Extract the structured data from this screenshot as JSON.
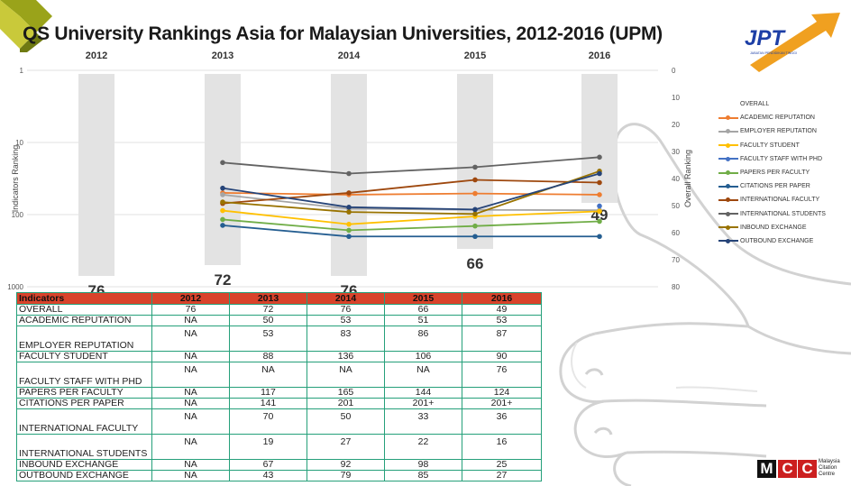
{
  "title": "QS University Rankings Asia for Malaysian Universities, 2012-2016 (UPM)",
  "logos": {
    "jpt": "JPT",
    "jpt_tagline": "JABATAN PENDIDIKAN TINGGI",
    "mcc_letters": [
      "M",
      "C",
      "C"
    ],
    "mcc_text": [
      "Malaysia",
      "Citation",
      "Centre"
    ]
  },
  "colors": {
    "header_bg": "#d9432b",
    "table_border": "#25a07a",
    "overall_bar": "#e3e3e3",
    "corner_logo": "#9aa31a",
    "jpt_arrow": "#f0a020",
    "jpt_blue": "#1d3fa6",
    "mcc_red": "#cc1f1f"
  },
  "chart_data": {
    "type": "line",
    "x": [
      "2012",
      "2013",
      "2014",
      "2015",
      "2016"
    ],
    "ylabel_left": "Indicators Ranking",
    "ylabel_right": "Overall Ranking",
    "left_axis": {
      "scale": "log",
      "ticks": [
        "1",
        "10",
        "100",
        "1000"
      ],
      "ylim": [
        1,
        1000
      ],
      "inverted": true
    },
    "right_axis": {
      "scale": "linear",
      "ticks": [
        "0",
        "10",
        "20",
        "30",
        "40",
        "50",
        "60",
        "70",
        "80"
      ],
      "ylim": [
        0,
        80
      ],
      "inverted": true
    },
    "overall": {
      "name": "OVERALL",
      "values": [
        76,
        72,
        76,
        66,
        49
      ],
      "labels": [
        "76",
        "72",
        "76",
        "66",
        "49"
      ]
    },
    "legend_position": "right",
    "series": [
      {
        "name": "ACADEMIC REPUTATION",
        "color": "#ee7d31",
        "values": [
          null,
          50,
          53,
          51,
          53
        ]
      },
      {
        "name": "EMPLOYER REPUTATION",
        "color": "#a5a5a5",
        "values": [
          null,
          53,
          83,
          86,
          87
        ]
      },
      {
        "name": "FACULTY STUDENT",
        "color": "#ffc000",
        "values": [
          null,
          88,
          136,
          106,
          90
        ]
      },
      {
        "name": "FACULTY STAFF WITH PHD",
        "color": "#4472c4",
        "values": [
          null,
          null,
          null,
          null,
          76
        ]
      },
      {
        "name": "PAPERS PER FACULTY",
        "color": "#70ad47",
        "values": [
          null,
          117,
          165,
          144,
          124
        ]
      },
      {
        "name": "CITATIONS PER PAPER",
        "color": "#255e91",
        "values": [
          null,
          141,
          201,
          201,
          201
        ]
      },
      {
        "name": "INTERNATIONAL FACULTY",
        "color": "#9e480e",
        "values": [
          null,
          70,
          50,
          33,
          36
        ]
      },
      {
        "name": "INTERNATIONAL STUDENTS",
        "color": "#636363",
        "values": [
          null,
          19,
          27,
          22,
          16
        ]
      },
      {
        "name": "INBOUND EXCHANGE",
        "color": "#997300",
        "values": [
          null,
          67,
          92,
          98,
          25
        ]
      },
      {
        "name": "OUTBOUND EXCHANGE",
        "color": "#264478",
        "values": [
          null,
          43,
          79,
          85,
          27
        ]
      }
    ]
  },
  "table": {
    "headers": [
      "Indicators",
      "2012",
      "2013",
      "2014",
      "2015",
      "2016"
    ],
    "rows": [
      {
        "name": "OVERALL",
        "values": [
          "76",
          "72",
          "76",
          "66",
          "49"
        ],
        "tall": false
      },
      {
        "name": "ACADEMIC REPUTATION",
        "values": [
          "NA",
          "50",
          "53",
          "51",
          "53"
        ],
        "tall": false
      },
      {
        "name": "EMPLOYER REPUTATION",
        "values": [
          "NA",
          "53",
          "83",
          "86",
          "87"
        ],
        "tall": true
      },
      {
        "name": "FACULTY STUDENT",
        "values": [
          "NA",
          "88",
          "136",
          "106",
          "90"
        ],
        "tall": false
      },
      {
        "name": "FACULTY STAFF WITH PHD",
        "values": [
          "NA",
          "NA",
          "NA",
          "NA",
          "76"
        ],
        "tall": true
      },
      {
        "name": "PAPERS PER FACULTY",
        "values": [
          "NA",
          "117",
          "165",
          "144",
          "124"
        ],
        "tall": false
      },
      {
        "name": "CITATIONS PER PAPER",
        "values": [
          "NA",
          "141",
          "201",
          "201+",
          "201+"
        ],
        "tall": false
      },
      {
        "name": "INTERNATIONAL FACULTY",
        "values": [
          "NA",
          "70",
          "50",
          "33",
          "36"
        ],
        "tall": true
      },
      {
        "name": "INTERNATIONAL STUDENTS",
        "values": [
          "NA",
          "19",
          "27",
          "22",
          "16"
        ],
        "tall": true
      },
      {
        "name": "INBOUND EXCHANGE",
        "values": [
          "NA",
          "67",
          "92",
          "98",
          "25"
        ],
        "tall": false
      },
      {
        "name": "OUTBOUND EXCHANGE",
        "values": [
          "NA",
          "43",
          "79",
          "85",
          "27"
        ],
        "tall": false
      }
    ]
  }
}
